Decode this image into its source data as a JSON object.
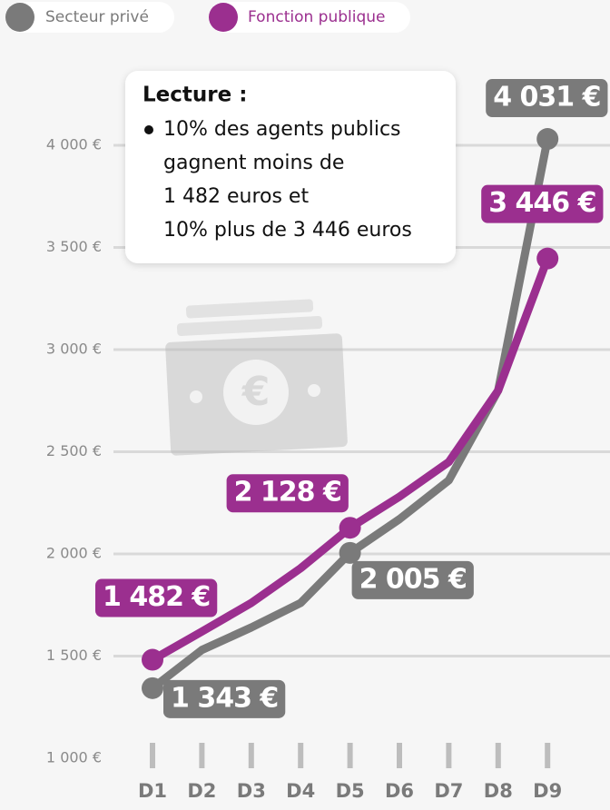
{
  "chart_data": {
    "type": "line",
    "categories": [
      "D1",
      "D2",
      "D3",
      "D4",
      "D5",
      "D6",
      "D7",
      "D8",
      "D9"
    ],
    "series": [
      {
        "name": "Secteur privé",
        "color": "#7a7a7a",
        "values": [
          1343,
          1530,
          1640,
          1760,
          2005,
          2170,
          2360,
          2800,
          4031
        ],
        "value_labels": [
          "1 343 €",
          null,
          null,
          null,
          "2 005 €",
          null,
          null,
          null,
          "4 031 €"
        ]
      },
      {
        "name": "Fonction publique",
        "color": "#9b2f8f",
        "values": [
          1482,
          1620,
          1760,
          1930,
          2128,
          2280,
          2450,
          2800,
          3446
        ],
        "value_labels": [
          "1 482 €",
          null,
          null,
          null,
          "2 128 €",
          null,
          null,
          null,
          "3 446 €"
        ]
      }
    ],
    "ylim": [
      1000,
      4000
    ],
    "yticks": [
      {
        "value": 1000,
        "label": "1 000 €"
      },
      {
        "value": 1500,
        "label": "1 500 €"
      },
      {
        "value": 2000,
        "label": "2 000 €"
      },
      {
        "value": 2500,
        "label": "2 500 €"
      },
      {
        "value": 3000,
        "label": "3 000 €"
      },
      {
        "value": 3500,
        "label": "3 500 €"
      },
      {
        "value": 4000,
        "label": "4 000 €"
      }
    ],
    "grid": true,
    "legend": "top-left",
    "annotation": {
      "title": "Lecture :",
      "lines": [
        "10% des agents publics",
        "gagnent moins de",
        "1 482 euros et",
        "10% plus de 3 446 euros"
      ]
    }
  }
}
